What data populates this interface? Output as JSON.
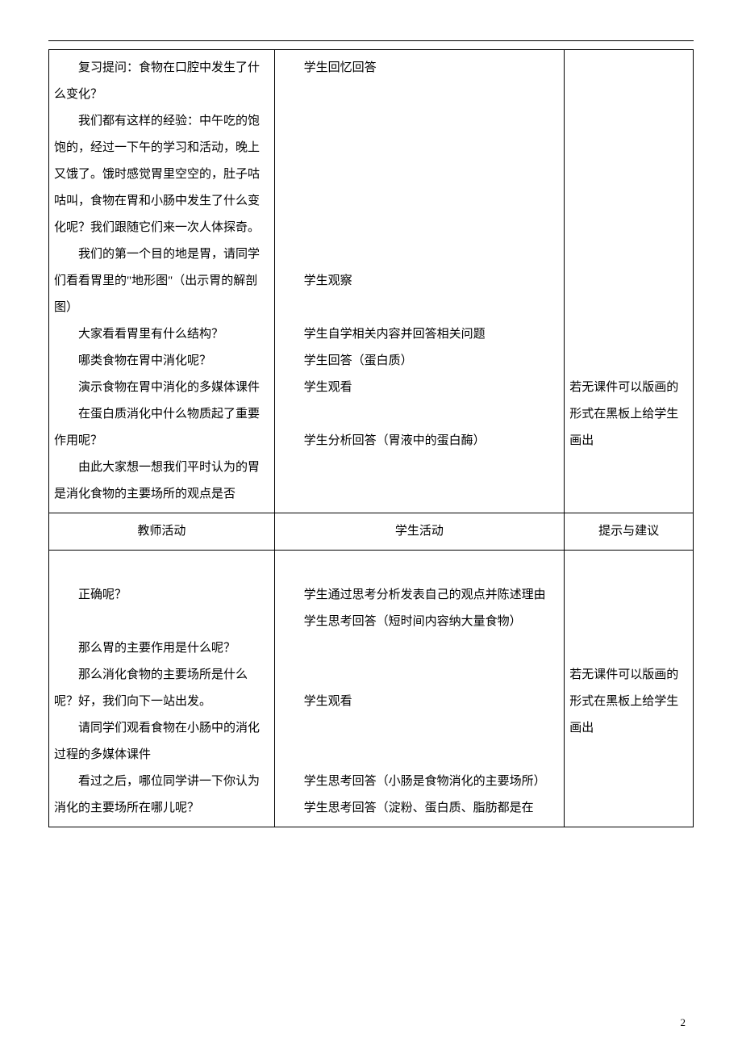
{
  "meta": {
    "page_number": "2"
  },
  "headers": {
    "teacher": "教师活动",
    "student": "学生活动",
    "note": "提示与建议"
  },
  "cells": {
    "t1": {
      "p1": "复习提问：食物在口腔中发生了什么变化？",
      "p2": "我们都有这样的经验：中午吃的饱饱的，经过一下午的学习和活动，晚上又饿了。饿时感觉胃里空空的，肚子咕咕叫，食物在胃和小肠中发生了什么变化呢？我们跟随它们来一次人体探奇。",
      "p3": "我们的第一个目的地是胃，请同学们看看胃里的\"地形图\"（出示胃的解剖图）",
      "p4": "大家看看胃里有什么结构？",
      "p5": "哪类食物在胃中消化呢？",
      "p6": "演示食物在胃中消化的多媒体课件",
      "p7": "在蛋白质消化中什么物质起了重要作用呢？",
      "p8": "由此大家想一想我们平时认为的胃是消化食物的主要场所的观点是否"
    },
    "s1": {
      "p1": "学生回忆回答",
      "gap1": " ",
      "gap2": " ",
      "gap3": " ",
      "gap4": " ",
      "gap5": " ",
      "gap6": " ",
      "gap7": " ",
      "p2": "学生观察",
      "gap8": " ",
      "p3": "学生自学相关内容并回答相关问题",
      "p4": "学生回答（蛋白质）",
      "p5": "学生观看",
      "gap9": " ",
      "p6": "学生分析回答（胃液中的蛋白酶）"
    },
    "n1": {
      "gap1": " ",
      "gap2": " ",
      "gap3": " ",
      "gap4": " ",
      "gap5": " ",
      "gap6": " ",
      "gap7": " ",
      "gap8": " ",
      "gap9": " ",
      "gap10": " ",
      "gap11": " ",
      "gap12": " ",
      "p1": "若无课件可以版画的形式在黑板上给学生画出"
    },
    "t2": {
      "p1": "正确呢？",
      "p2": "那么胃的主要作用是什么呢？",
      "p3": "那么消化食物的主要场所是什么呢？好，我们向下一站出发。",
      "p4": "请同学们观看食物在小肠中的消化过程的多媒体课件",
      "p5": "看过之后，哪位同学讲一下你认为消化的主要场所在哪儿呢？"
    },
    "s2": {
      "gap1": " ",
      "p1": "学生通过思考分析发表自己的观点并陈述理由",
      "p2": "学生思考回答（短时间内容纳大量食物）",
      "gap2": " ",
      "gap3": " ",
      "p3": "学生观看",
      "gap4": " ",
      "gap5": " ",
      "p4": "学生思考回答（小肠是食物消化的主要场所）",
      "p5": "学生思考回答（淀粉、蛋白质、脂肪都是在"
    },
    "n2": {
      "gap1": " ",
      "gap2": " ",
      "gap3": " ",
      "gap4": " ",
      "p1": "若无课件可以版画的形式在黑板上给学生画出"
    }
  }
}
